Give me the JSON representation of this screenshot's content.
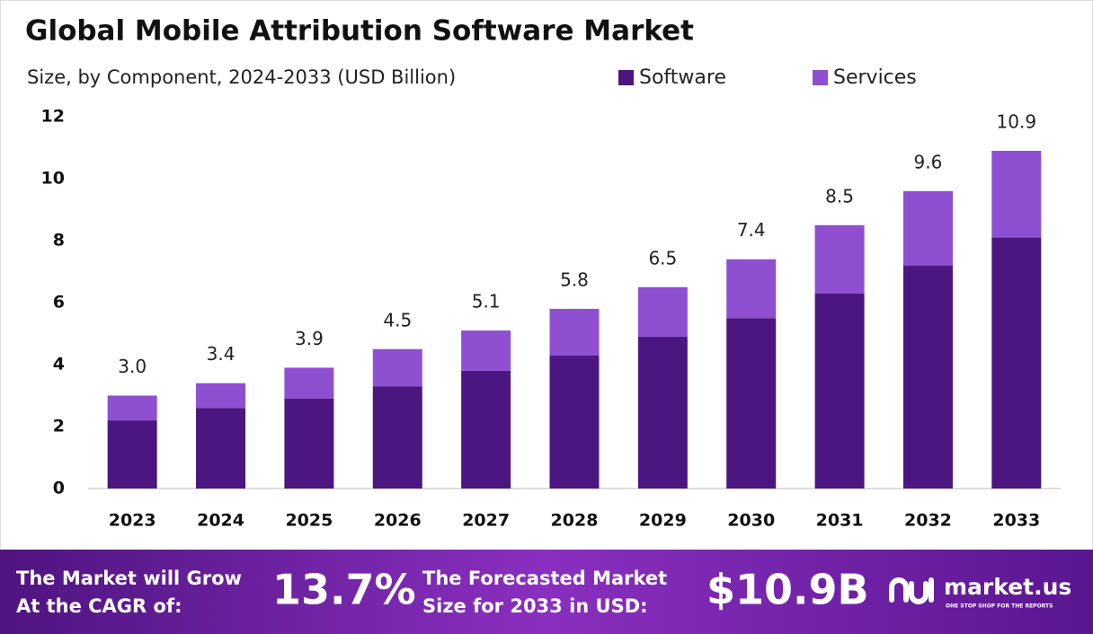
{
  "chart_data": {
    "type": "stacked_bar",
    "title": "Global Mobile Attribution Software Market",
    "subtitle": "Size, by Component, 2024-2033 (USD Billion)",
    "categories": [
      "2023",
      "2024",
      "2025",
      "2026",
      "2027",
      "2028",
      "2029",
      "2030",
      "2031",
      "2032",
      "2033"
    ],
    "series": [
      {
        "name": "Software",
        "color": "#4c1681",
        "values": [
          2.2,
          2.6,
          2.9,
          3.3,
          3.8,
          4.3,
          4.9,
          5.5,
          6.3,
          7.2,
          8.1
        ]
      },
      {
        "name": "Services",
        "color": "#8e4fd1",
        "values": [
          0.8,
          0.8,
          1.0,
          1.2,
          1.3,
          1.5,
          1.6,
          1.9,
          2.2,
          2.4,
          2.8
        ]
      }
    ],
    "totals": {
      "values": [
        3.0,
        3.4,
        3.9,
        4.5,
        5.1,
        5.8,
        6.5,
        7.4,
        8.5,
        9.6,
        10.9
      ],
      "value_labels": [
        "3.0",
        "3.4",
        "3.9",
        "4.5",
        "5.1",
        "5.8",
        "6.5",
        "7.4",
        "8.5",
        "9.6",
        "10.9"
      ]
    },
    "ylim": [
      0,
      12
    ],
    "yticks": [
      0,
      2,
      4,
      6,
      8,
      10,
      12
    ],
    "grid": false,
    "legend": "top"
  },
  "footer": {
    "cagr_text": [
      "The Market will Grow",
      "At the CAGR of:"
    ],
    "cagr": "13.7%",
    "forecast_text": [
      "The Forecasted Market",
      "Size for 2033 in USD:"
    ],
    "forecast": "$10.9B",
    "brand": "market.us",
    "tagline": "ONE STOP SHOP FOR THE REPORTS"
  }
}
